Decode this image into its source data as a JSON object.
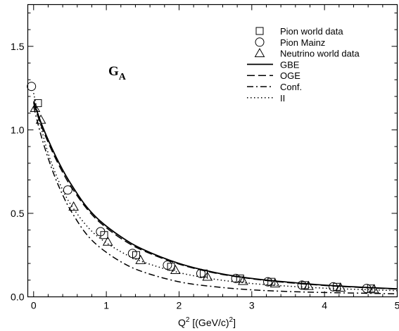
{
  "chart_data": {
    "type": "line",
    "annotation": {
      "main": "G",
      "sub": "A"
    },
    "xlabel": {
      "prefix": "Q",
      "sup": "2",
      "units": " [(GeV/c)",
      "units_sup": "2",
      "close": "]"
    },
    "ylabel": "",
    "xlim": [
      -0.08,
      5.0
    ],
    "ylim": [
      0.0,
      1.75
    ],
    "xticks": [
      0,
      1,
      2,
      3,
      4,
      5
    ],
    "xtick_labels": [
      "0",
      "1",
      "2",
      "3",
      "4",
      "5"
    ],
    "yticks": [
      0.0,
      0.5,
      1.0,
      1.5
    ],
    "ytick_labels": [
      "0.0",
      "0.5",
      "1.0",
      "1.5"
    ],
    "grid": false,
    "legend_position": "top-right",
    "series": [
      {
        "name": "GBE",
        "kind": "curve",
        "style": "solid",
        "x": [
          0.0,
          0.1,
          0.2,
          0.3,
          0.4,
          0.5,
          0.7,
          0.9,
          1.2,
          1.5,
          2.0,
          2.5,
          3.0,
          3.5,
          4.0,
          4.5,
          5.0
        ],
        "y": [
          1.17,
          1.045,
          0.94,
          0.845,
          0.76,
          0.685,
          0.555,
          0.46,
          0.36,
          0.285,
          0.2,
          0.145,
          0.11,
          0.088,
          0.07,
          0.058,
          0.048
        ]
      },
      {
        "name": "OGE",
        "kind": "curve",
        "style": "dashed",
        "x": [
          0.0,
          0.1,
          0.2,
          0.3,
          0.4,
          0.5,
          0.7,
          0.9,
          1.2,
          1.5,
          2.0,
          2.5,
          3.0,
          3.5,
          4.0,
          4.5,
          5.0
        ],
        "y": [
          1.16,
          1.03,
          0.925,
          0.83,
          0.745,
          0.67,
          0.545,
          0.45,
          0.35,
          0.278,
          0.196,
          0.142,
          0.108,
          0.085,
          0.068,
          0.056,
          0.046
        ]
      },
      {
        "name": "Conf.",
        "kind": "curve",
        "style": "dashdot",
        "x": [
          0.0,
          0.1,
          0.2,
          0.3,
          0.4,
          0.5,
          0.7,
          0.9,
          1.2,
          1.5,
          2.0,
          2.5,
          3.0,
          3.5,
          4.0,
          4.5,
          5.0
        ],
        "y": [
          1.14,
          0.97,
          0.83,
          0.71,
          0.61,
          0.525,
          0.39,
          0.3,
          0.21,
          0.15,
          0.09,
          0.06,
          0.042,
          0.032,
          0.026,
          0.022,
          0.018
        ]
      },
      {
        "name": "II",
        "kind": "curve",
        "style": "dotted",
        "x": [
          0.0,
          0.1,
          0.2,
          0.3,
          0.4,
          0.5,
          0.7,
          0.9,
          1.2,
          1.5,
          2.0,
          2.5,
          3.0,
          3.5,
          4.0,
          4.5,
          5.0
        ],
        "y": [
          1.22,
          1.02,
          0.86,
          0.74,
          0.64,
          0.56,
          0.44,
          0.355,
          0.27,
          0.21,
          0.145,
          0.105,
          0.08,
          0.064,
          0.052,
          0.044,
          0.037
        ]
      },
      {
        "name": "Pion world data",
        "kind": "markers",
        "marker": "square",
        "x": [
          0.06,
          0.97,
          1.41,
          1.89,
          2.34,
          2.84,
          3.27,
          3.73,
          4.17,
          4.64
        ],
        "y": [
          1.16,
          0.37,
          0.25,
          0.18,
          0.14,
          0.11,
          0.09,
          0.07,
          0.06,
          0.05
        ]
      },
      {
        "name": "Pion Mainz",
        "kind": "markers",
        "marker": "circle",
        "x": [
          -0.03,
          0.47,
          0.92,
          1.36,
          1.84,
          2.3,
          2.78,
          3.22,
          3.69,
          4.12,
          4.58
        ],
        "y": [
          1.26,
          0.64,
          0.39,
          0.26,
          0.19,
          0.14,
          0.11,
          0.09,
          0.07,
          0.06,
          0.05
        ]
      },
      {
        "name": "Neutrino world data",
        "kind": "markers",
        "marker": "triangle",
        "x": [
          0.02,
          0.1,
          0.55,
          1.02,
          1.47,
          1.95,
          2.39,
          2.88,
          3.32,
          3.78,
          4.22,
          4.68
        ],
        "y": [
          1.13,
          1.06,
          0.54,
          0.33,
          0.22,
          0.16,
          0.12,
          0.095,
          0.08,
          0.065,
          0.055,
          0.045
        ]
      }
    ],
    "legend_order": [
      "Pion world data",
      "Pion Mainz",
      "Neutrino world data",
      "GBE",
      "OGE",
      "Conf.",
      "II"
    ],
    "colors": {
      "line": "#000000",
      "background": "#ffffff"
    }
  }
}
